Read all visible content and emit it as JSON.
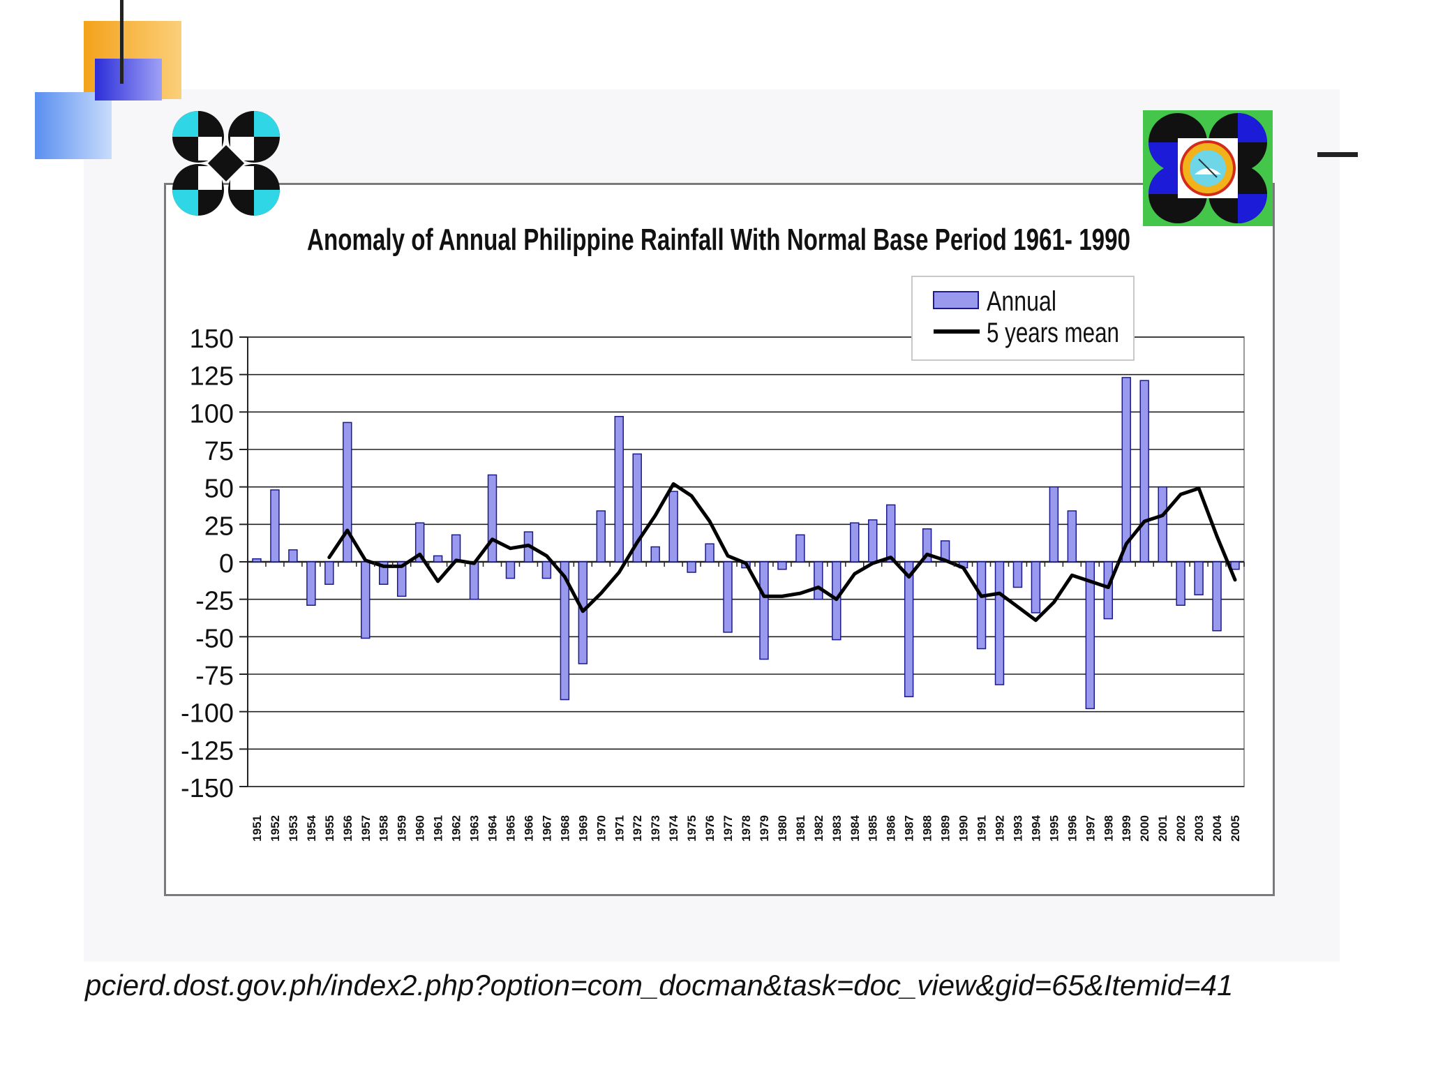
{
  "slide": {
    "source_url": "pcierd.dost.gov.ph/index2.php?option=com_docman&task=doc_view&gid=65&Itemid=41",
    "colors": {
      "accent_orange": "#f4a21a",
      "accent_blue": "#5a8ff0",
      "accent_navy": "#2c2ed9"
    }
  },
  "chart_data": {
    "type": "bar",
    "title": "Anomaly of Annual Philippine Rainfall With Normal Base Period 1961- 1990",
    "xlabel": "",
    "ylabel": "",
    "ylim": [
      -150,
      150
    ],
    "yticks": [
      150,
      125,
      100,
      75,
      50,
      25,
      0,
      -25,
      -50,
      -75,
      -100,
      -125,
      -150
    ],
    "ytick_labels": [
      "150",
      "125",
      "100",
      "75",
      "50",
      "25",
      "0",
      "-25",
      "-50",
      "-75",
      "-100",
      "-125",
      "-150"
    ],
    "categories": [
      "1951",
      "1952",
      "1953",
      "1954",
      "1955",
      "1956",
      "1957",
      "1958",
      "1959",
      "1960",
      "1961",
      "1962",
      "1963",
      "1964",
      "1965",
      "1966",
      "1967",
      "1968",
      "1969",
      "1970",
      "1971",
      "1972",
      "1973",
      "1974",
      "1975",
      "1976",
      "1977",
      "1978",
      "1979",
      "1980",
      "1981",
      "1982",
      "1983",
      "1984",
      "1985",
      "1986",
      "1987",
      "1988",
      "1989",
      "1990",
      "1991",
      "1992",
      "1993",
      "1994",
      "1995",
      "1996",
      "1997",
      "1998",
      "1999",
      "2000",
      "2001",
      "2002",
      "2003",
      "2004",
      "2005"
    ],
    "grid": true,
    "legend_position": "top-right",
    "series": [
      {
        "name": "Annual",
        "type": "bar",
        "color": "#9999ee",
        "values": [
          2,
          48,
          8,
          -29,
          -15,
          93,
          -51,
          -15,
          -23,
          26,
          4,
          18,
          -25,
          58,
          -11,
          20,
          -11,
          -92,
          -68,
          34,
          97,
          72,
          10,
          47,
          -7,
          12,
          -47,
          -4,
          -65,
          -5,
          18,
          -25,
          -52,
          26,
          28,
          38,
          -90,
          22,
          14,
          -4,
          -58,
          -82,
          -17,
          -34,
          50,
          34,
          -98,
          -38,
          123,
          121,
          50,
          -29,
          -22,
          -46,
          -5
        ]
      },
      {
        "name": "5 years mean",
        "type": "line",
        "color": "#000000",
        "values": [
          null,
          null,
          null,
          null,
          3,
          21,
          1,
          -3,
          -3,
          5,
          -13,
          1,
          -1,
          15,
          9,
          11,
          4,
          -10,
          -33,
          -21,
          -7,
          13,
          31,
          52,
          44,
          27,
          4,
          -1,
          -23,
          -23,
          -21,
          -17,
          -25,
          -8,
          -1,
          3,
          -10,
          5,
          1,
          -4,
          -23,
          -21,
          -30,
          -39,
          -27,
          -9,
          -13,
          -17,
          12,
          27,
          31,
          45,
          49,
          17,
          -12
        ]
      }
    ]
  }
}
